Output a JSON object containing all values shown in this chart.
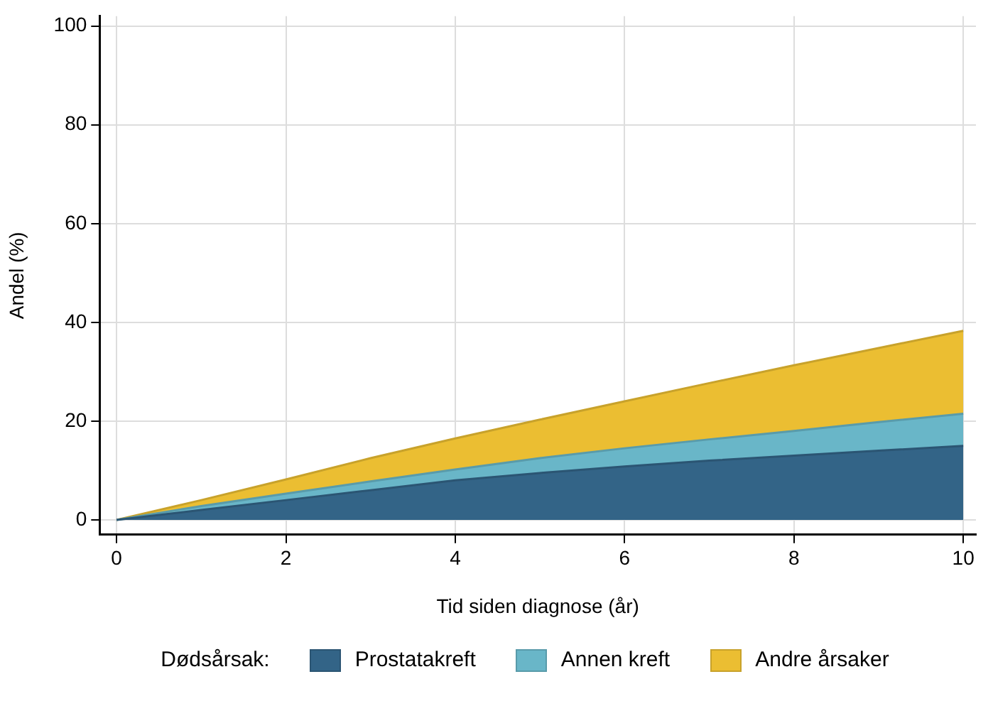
{
  "chart_data": {
    "type": "area",
    "stacked": true,
    "xlabel": "Tid siden diagnose (år)",
    "ylabel": "Andel (%)",
    "legend_title": "Dødsårsak:",
    "legend": "bottom",
    "grid": true,
    "x": [
      0,
      1,
      2,
      3,
      4,
      5,
      6,
      7,
      8,
      9,
      10
    ],
    "xlim": [
      -0.2,
      10.15
    ],
    "xticks": [
      0,
      2,
      4,
      6,
      8,
      10
    ],
    "ylim": [
      -3,
      102
    ],
    "yticks": [
      0,
      20,
      40,
      60,
      80,
      100
    ],
    "series": [
      {
        "name": "Prostatakreft",
        "color": "#336487",
        "values": [
          0,
          2,
          4,
          6,
          8,
          9.5,
          10.8,
          12,
          13,
          14,
          15
        ]
      },
      {
        "name": "Annen kreft",
        "color": "#69b6c8",
        "values": [
          0,
          0.8,
          1.3,
          1.8,
          2.2,
          3,
          3.7,
          4.3,
          5,
          5.8,
          6.5
        ]
      },
      {
        "name": "Andre årsaker",
        "color": "#ebbe32",
        "values": [
          0,
          1.2,
          2.9,
          4.7,
          6.3,
          7.8,
          9.5,
          11.4,
          13.3,
          15,
          16.8
        ]
      }
    ]
  }
}
